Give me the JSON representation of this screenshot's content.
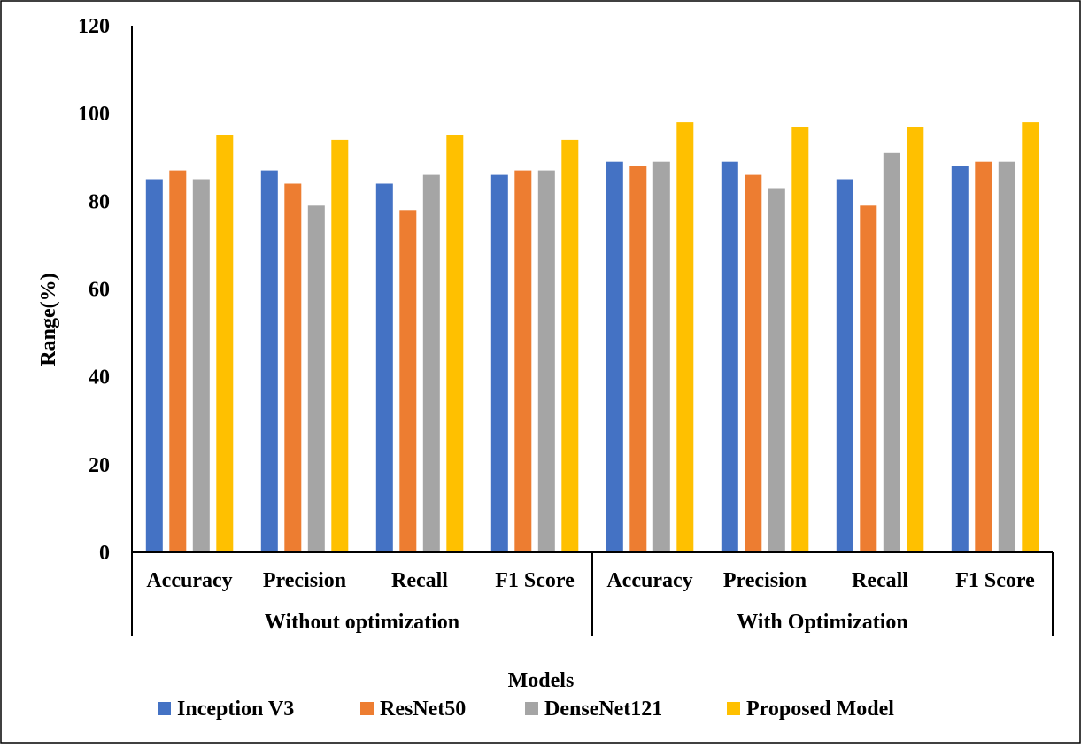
{
  "chart_data": {
    "type": "bar",
    "title": "",
    "xlabel": "Models",
    "ylabel": "Range(%)",
    "ylim": [
      0,
      120
    ],
    "yticks": [
      0,
      20,
      40,
      60,
      80,
      100,
      120
    ],
    "grid": false,
    "legend_position": "bottom",
    "categories": [
      "Accuracy",
      "Precision",
      "Recall",
      "F1 Score",
      "Accuracy",
      "Precision",
      "Recall",
      "F1 Score"
    ],
    "groups": [
      {
        "label": "Without optimization",
        "categories": [
          "Accuracy",
          "Precision",
          "Recall",
          "F1 Score"
        ]
      },
      {
        "label": "With Optimization",
        "categories": [
          "Accuracy",
          "Precision",
          "Recall",
          "F1 Score"
        ]
      }
    ],
    "series": [
      {
        "name": "Inception V3",
        "color": "#4472c4",
        "values": [
          85,
          87,
          84,
          86,
          89,
          89,
          85,
          88
        ]
      },
      {
        "name": "ResNet50",
        "color": "#ed7d31",
        "values": [
          87,
          84,
          78,
          87,
          88,
          86,
          79,
          89
        ]
      },
      {
        "name": "DenseNet121",
        "color": "#a5a5a5",
        "values": [
          85,
          79,
          86,
          87,
          89,
          83,
          91,
          89
        ]
      },
      {
        "name": "Proposed Model",
        "color": "#ffc000",
        "values": [
          95,
          94,
          95,
          94,
          98,
          97,
          97,
          98
        ]
      }
    ]
  }
}
